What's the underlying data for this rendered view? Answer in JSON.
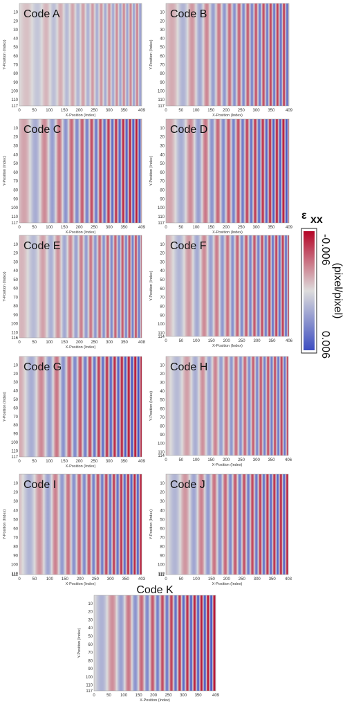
{
  "panels": [
    {
      "label": "Code A",
      "xlabel": "X-Position (Index)",
      "ylabel": "Y-Position (Index)",
      "xticks": [
        "0",
        "50",
        "100",
        "150",
        "200",
        "250",
        "300",
        "350",
        "409"
      ],
      "yticks": [
        "10",
        "20",
        "30",
        "40",
        "50",
        "60",
        "70",
        "80",
        "90",
        "100",
        "110",
        "117"
      ]
    },
    {
      "label": "Code B",
      "xlabel": "X-Position (Index)",
      "ylabel": "Y-Position (Index)",
      "xticks": [
        "0",
        "50",
        "100",
        "150",
        "200",
        "250",
        "300",
        "350",
        "409"
      ],
      "yticks": [
        "10",
        "20",
        "30",
        "40",
        "50",
        "60",
        "70",
        "80",
        "90",
        "100",
        "110",
        "117"
      ]
    },
    {
      "label": "Code C",
      "xlabel": "X-Position (Index)",
      "ylabel": "Y-Position (Index)",
      "xticks": [
        "0",
        "50",
        "100",
        "150",
        "200",
        "250",
        "300",
        "350",
        "409"
      ],
      "yticks": [
        "10",
        "20",
        "30",
        "40",
        "50",
        "60",
        "70",
        "80",
        "90",
        "100",
        "110",
        "117"
      ]
    },
    {
      "label": "Code D",
      "xlabel": "X-Position (Index)",
      "ylabel": "Y-Position (Index)",
      "xticks": [
        "0",
        "50",
        "100",
        "150",
        "200",
        "250",
        "300",
        "350",
        "409"
      ],
      "yticks": [
        "10",
        "20",
        "30",
        "40",
        "50",
        "60",
        "70",
        "80",
        "90",
        "100",
        "110",
        "117"
      ]
    },
    {
      "label": "Code E",
      "xlabel": "X-Position (Index)",
      "ylabel": "Y-Position (Index)",
      "xticks": [
        "0",
        "50",
        "100",
        "150",
        "200",
        "250",
        "300",
        "350",
        "408"
      ],
      "yticks": [
        "10",
        "20",
        "30",
        "40",
        "50",
        "60",
        "70",
        "80",
        "90",
        "100",
        "110",
        "116"
      ]
    },
    {
      "label": "Code F",
      "xlabel": "X-Position (Index)",
      "ylabel": "Y-Position (Index)",
      "xticks": [
        "0",
        "50",
        "100",
        "150",
        "200",
        "250",
        "300",
        "350",
        "406"
      ],
      "yticks": [
        "10",
        "20",
        "30",
        "40",
        "50",
        "60",
        "70",
        "80",
        "90",
        "100",
        "110",
        "114"
      ]
    },
    {
      "label": "Code G",
      "xlabel": "X-Position (Index)",
      "ylabel": "Y-Position (Index)",
      "xticks": [
        "0",
        "50",
        "100",
        "150",
        "200",
        "250",
        "300",
        "350",
        "409"
      ],
      "yticks": [
        "10",
        "20",
        "30",
        "40",
        "50",
        "60",
        "70",
        "80",
        "90",
        "100",
        "110",
        "117"
      ]
    },
    {
      "label": "Code H",
      "xlabel": "X-Position (Index)",
      "ylabel": "Y-Position (Index)",
      "xticks": [
        "0",
        "50",
        "100",
        "150",
        "200",
        "250",
        "300",
        "350",
        "406"
      ],
      "yticks": [
        "10",
        "20",
        "30",
        "40",
        "50",
        "60",
        "70",
        "80",
        "90",
        "100",
        "110",
        "114"
      ]
    },
    {
      "label": "Code I",
      "xlabel": "X-Position (Index)",
      "ylabel": "Y-Position (Index)",
      "xticks": [
        "0",
        "50",
        "100",
        "150",
        "200",
        "250",
        "300",
        "350",
        "403"
      ],
      "yticks": [
        "10",
        "20",
        "30",
        "40",
        "50",
        "60",
        "70",
        "80",
        "90",
        "100",
        "110",
        "111"
      ]
    },
    {
      "label": "Code J",
      "xlabel": "X-Position (Index)",
      "ylabel": "Y-Position (Index)",
      "xticks": [
        "0",
        "50",
        "100",
        "150",
        "200",
        "250",
        "300",
        "350",
        "403"
      ],
      "yticks": [
        "10",
        "20",
        "30",
        "40",
        "50",
        "60",
        "70",
        "80",
        "90",
        "100",
        "110",
        "111"
      ]
    },
    {
      "label": "Code K",
      "xlabel": "X-Position (Index)",
      "ylabel": "Y-Position (Index)",
      "xticks": [
        "0",
        "50",
        "100",
        "150",
        "200",
        "250",
        "300",
        "350",
        "409"
      ],
      "yticks": [
        "10",
        "20",
        "30",
        "40",
        "50",
        "60",
        "70",
        "80",
        "90",
        "100",
        "110",
        "117"
      ]
    }
  ],
  "colorbar": {
    "symbol": "ε",
    "subscript": "xx",
    "top": "-0.006",
    "bottom": "0.006",
    "unit": "(pixel/pixel)"
  }
}
